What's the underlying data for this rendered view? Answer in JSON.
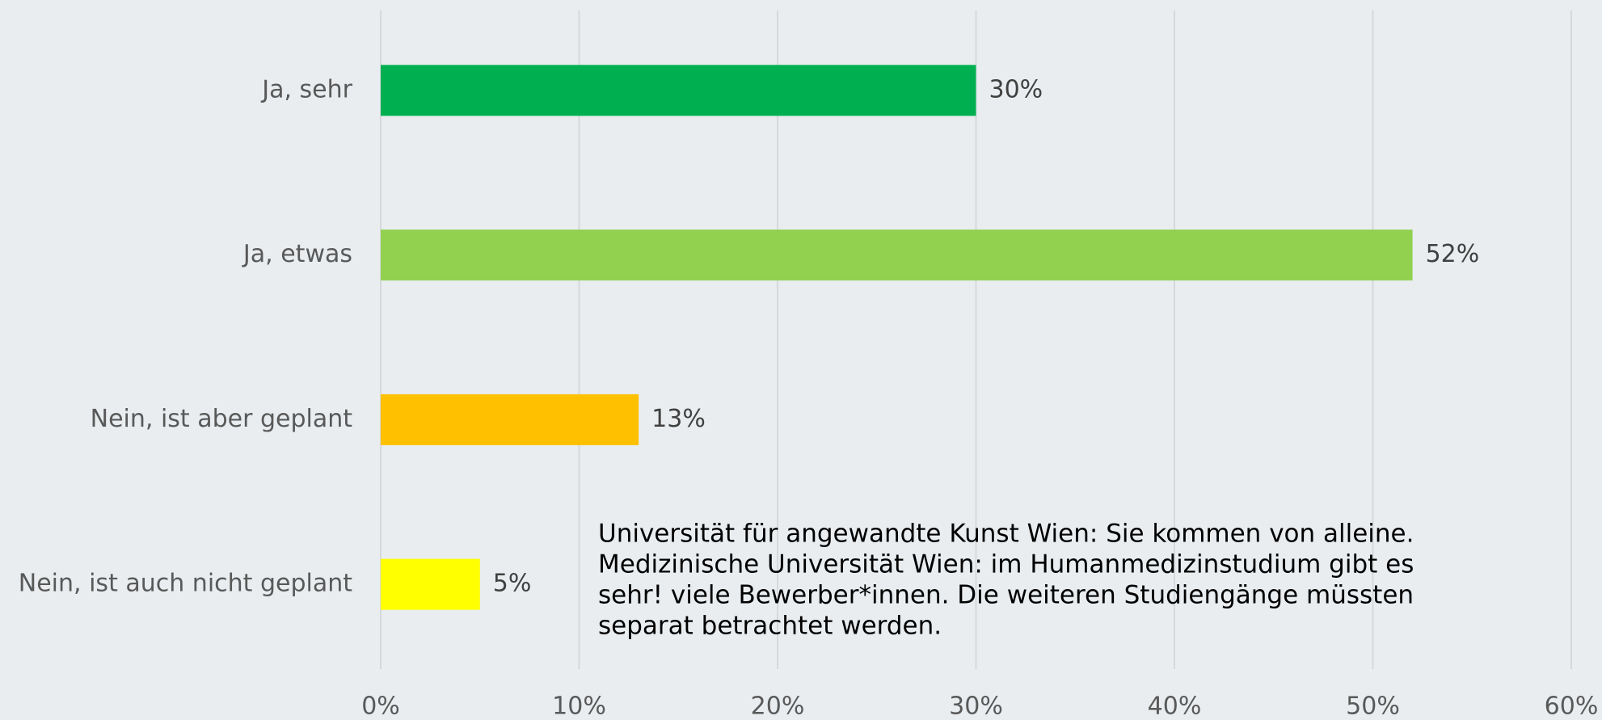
{
  "chart_data": {
    "type": "hbar",
    "categories": [
      "Ja, sehr",
      "Ja, etwas",
      "Nein, ist aber geplant",
      "Nein, ist auch nicht geplant"
    ],
    "values": [
      30,
      52,
      13,
      5
    ],
    "value_labels": [
      "30%",
      "52%",
      "13%",
      "5%"
    ],
    "colors": [
      "#00b050",
      "#92d050",
      "#ffc000",
      "#ffff00"
    ],
    "xlim": [
      0,
      60
    ],
    "xticks": [
      {
        "value": 0,
        "label": "0%"
      },
      {
        "value": 10,
        "label": "10%"
      },
      {
        "value": 20,
        "label": "20%"
      },
      {
        "value": 30,
        "label": "30%"
      },
      {
        "value": 40,
        "label": "40%"
      },
      {
        "value": 50,
        "label": "50%"
      },
      {
        "value": 60,
        "label": "60%"
      }
    ],
    "grid": true,
    "annotation": [
      "Universität für angewandte Kunst Wien: Sie kommen von alleine.",
      "Medizinische Universität Wien: im Humanmedizinstudium gibt es",
      "sehr! viele Bewerber*innen. Die weiteren Studiengänge müssten",
      "separat betrachtet werden."
    ]
  }
}
